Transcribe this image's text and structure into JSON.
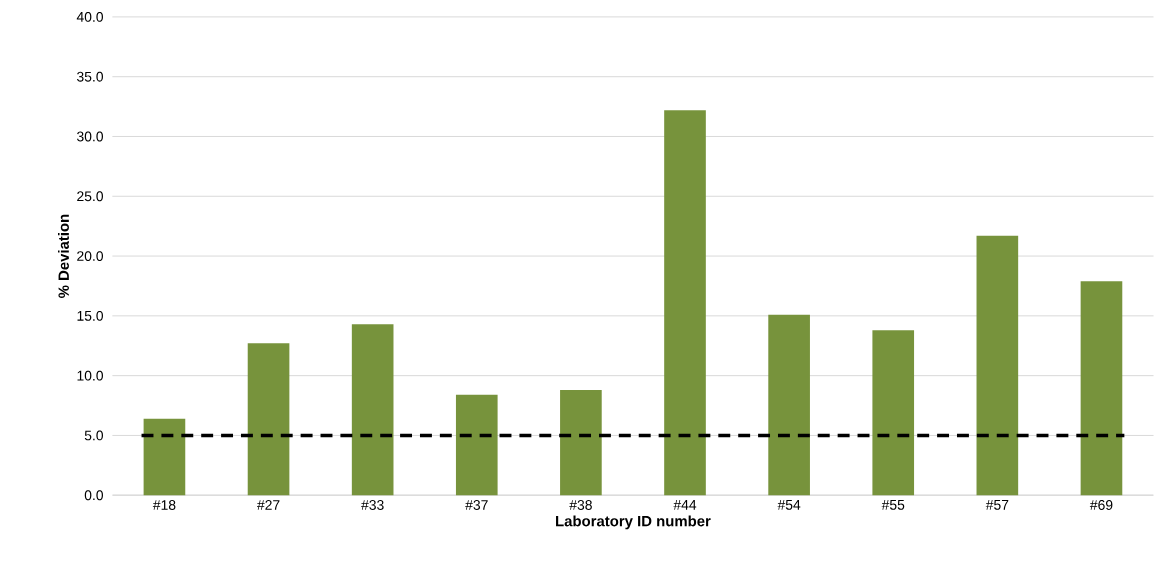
{
  "chart_data": {
    "type": "bar",
    "xlabel": "Laboratory ID number",
    "ylabel": "% Deviation",
    "categories": [
      "#18",
      "#27",
      "#33",
      "#37",
      "#38",
      "#44",
      "#54",
      "#55",
      "#57",
      "#69"
    ],
    "values": [
      6.4,
      12.7,
      14.3,
      8.4,
      8.8,
      32.2,
      15.1,
      13.8,
      21.7,
      17.9
    ],
    "color": "#77933c",
    "ylim": [
      0,
      40
    ],
    "yticks": [
      {
        "value": 0,
        "label": "0.0"
      },
      {
        "value": 5,
        "label": "5.0"
      },
      {
        "value": 10,
        "label": "10.0"
      },
      {
        "value": 15,
        "label": "15.0"
      },
      {
        "value": 20,
        "label": "20.0"
      },
      {
        "value": 25,
        "label": "25.0"
      },
      {
        "value": 30,
        "label": "30.0"
      },
      {
        "value": 35,
        "label": "35.0"
      },
      {
        "value": 40,
        "label": "40.0"
      }
    ],
    "grid": "y",
    "ref_lines": [
      {
        "axis": "y",
        "value": 5,
        "color": "#000000",
        "line_style": "dashed"
      }
    ]
  }
}
